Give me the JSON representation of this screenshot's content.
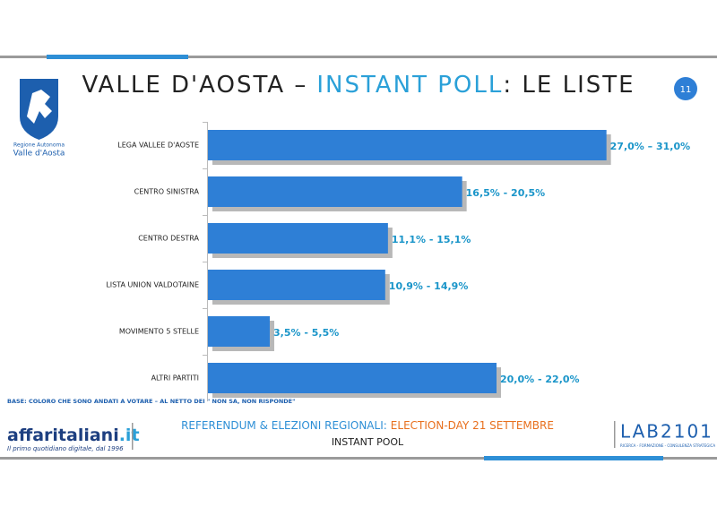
{
  "chart_data": {
    "type": "bar",
    "orientation": "horizontal",
    "title": "VALLE D'AOSTA –",
    "title_highlight": "INSTANT POLL",
    "title_end": ": LE LISTE",
    "categories": [
      "LEGA VALLEE D'AOSTE",
      "CENTRO SINISTRA",
      "CENTRO DESTRA",
      "LISTA UNION VALDOTAINE",
      "MOVIMENTO 5 STELLE",
      "ALTRI PARTITI"
    ],
    "values": [
      29,
      18.5,
      13.1,
      12.9,
      4.5,
      21
    ],
    "value_labels": [
      "27,0% – 31,0%",
      "16,5% - 20,5%",
      "11,1% - 15,1%",
      "10,9% - 14,9%",
      "3,5% - 5,5%",
      "20,0% - 22,0%"
    ],
    "color": "#2e7fd6",
    "label_color": "#1a95c9",
    "xlim": [
      0,
      30
    ]
  },
  "page_number": "11",
  "logo": {
    "line1": "Regione Autonoma",
    "line2": "Valle d'Aosta"
  },
  "footer": {
    "base": "BASE: COLORO CHE SONO ANDATI A VOTARE – AL NETTO DEI \" NON SA, NON RISPONDE\"",
    "event": "REFERENDUM & ELEZIONI REGIONALI:",
    "event_highlight": "ELECTION-DAY 21 SETTEMBRE",
    "subtitle": "INSTANT POOL",
    "brand": "affaritaliani",
    "brand_tld": ".it",
    "brand_tagline": "Il primo quotidiano digitale, dal 1996",
    "lab": "LAB2101",
    "lab_tagline": "RICERCA - FORMAZIONE - CONSULENZA STRATEGICA"
  }
}
